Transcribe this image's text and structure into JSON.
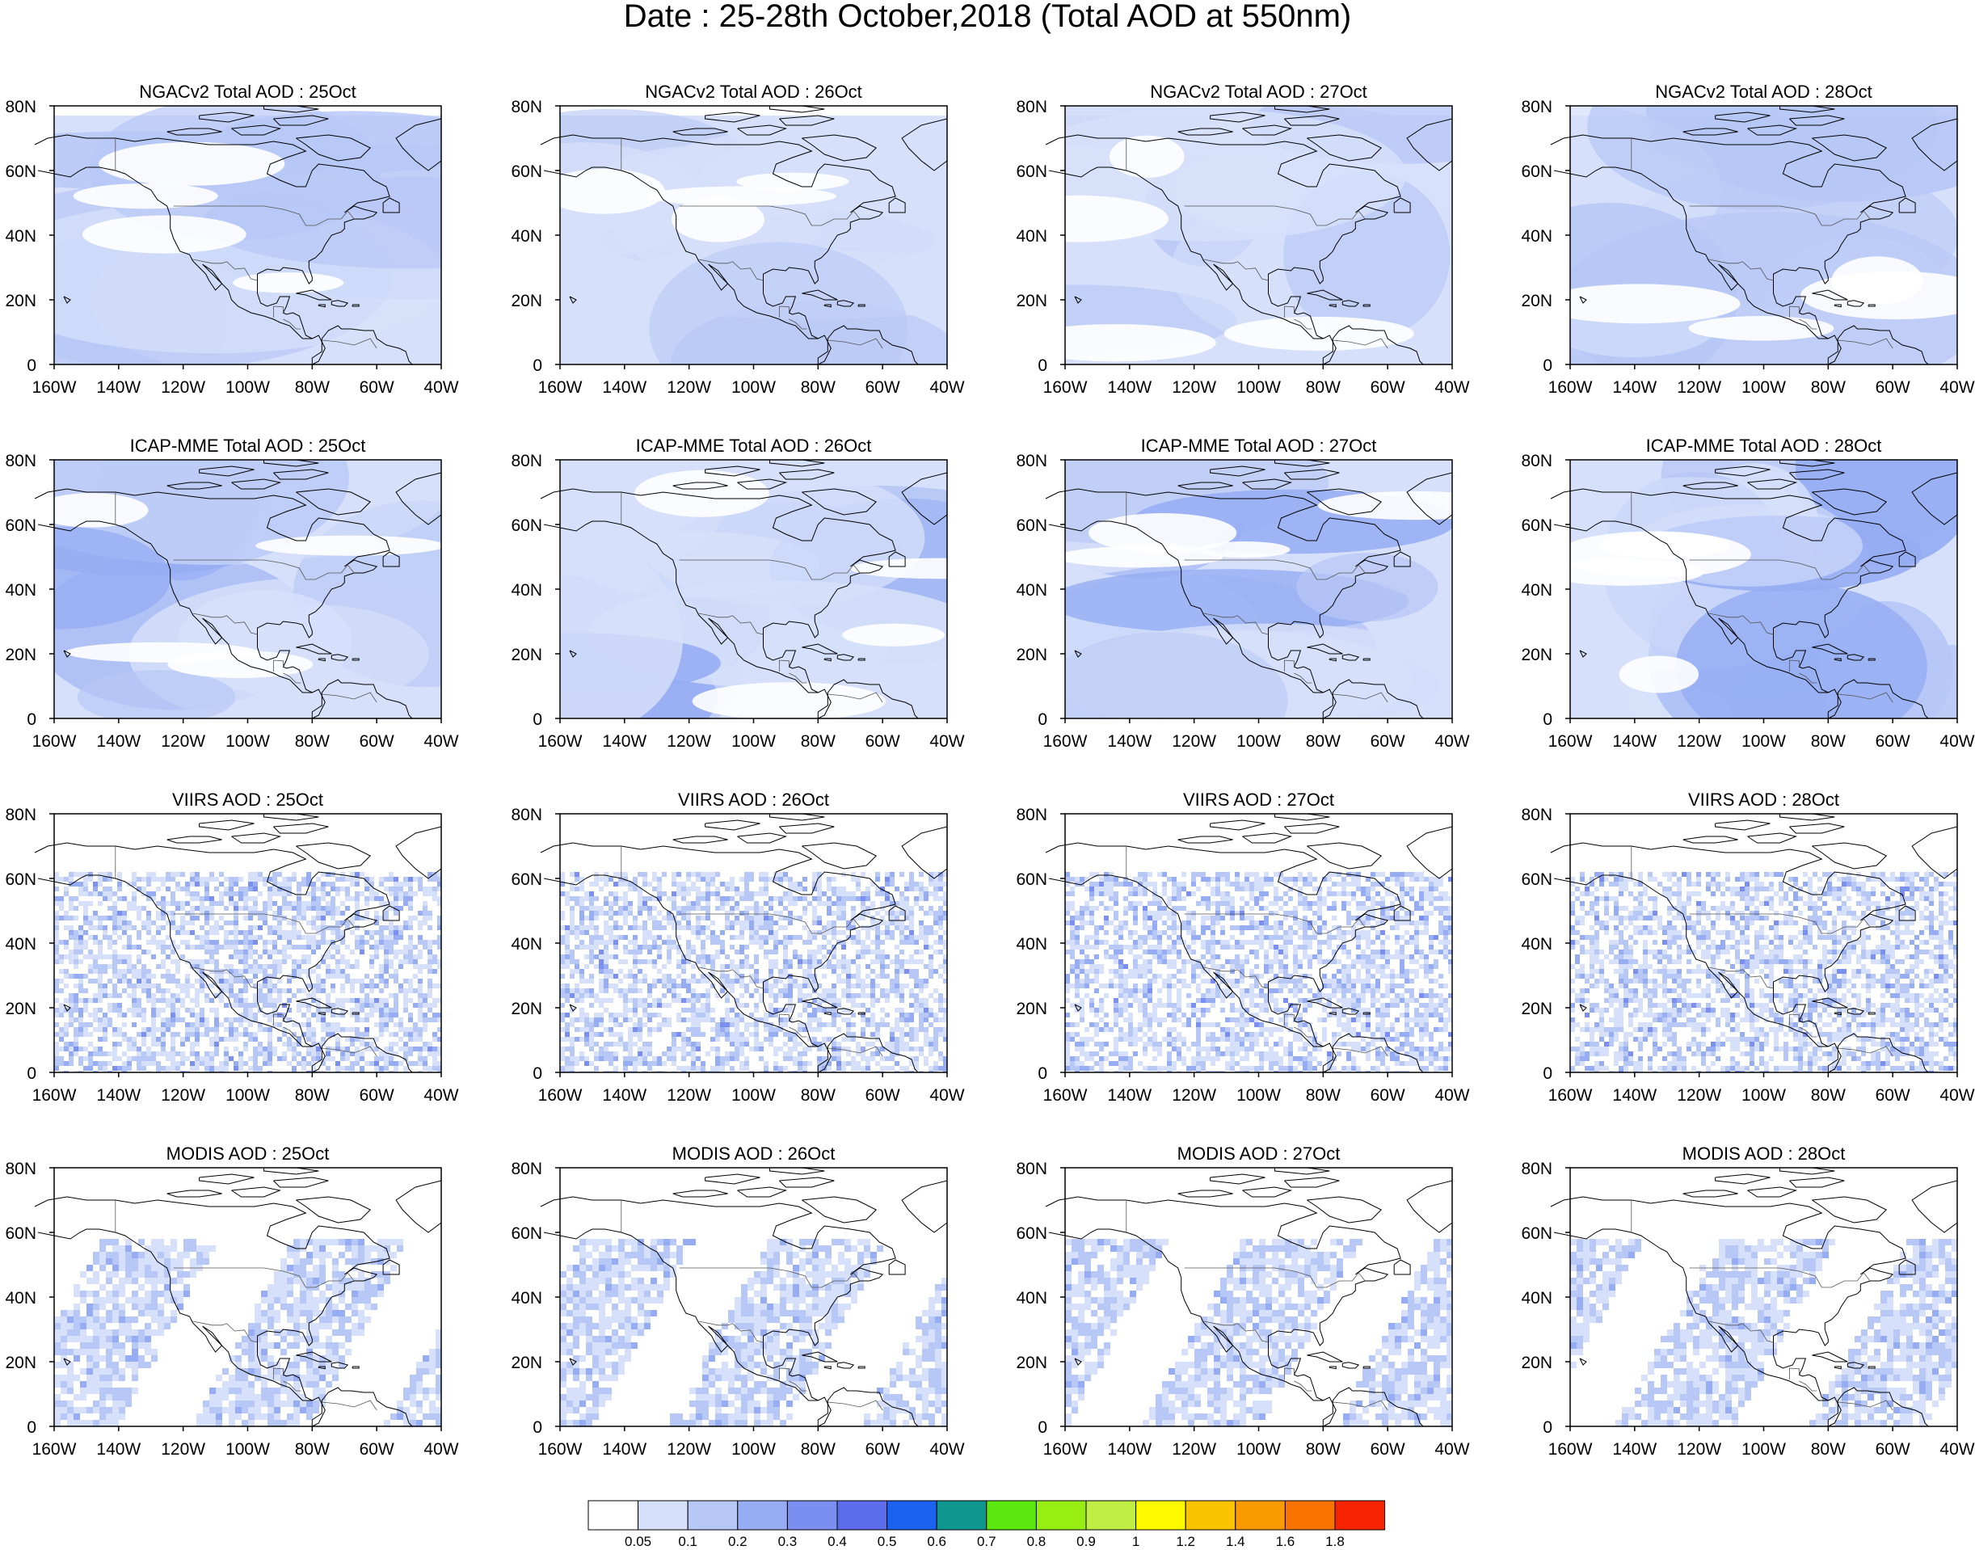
{
  "figure": {
    "title": "Date : 25-28th October,2018 (Total AOD at 550nm)"
  },
  "axes": {
    "lon_ticks": [
      "160W",
      "140W",
      "120W",
      "100W",
      "80W",
      "60W",
      "40W"
    ],
    "lat_ticks": [
      "0",
      "20N",
      "40N",
      "60N",
      "80N"
    ],
    "lon_range": [
      -160,
      -40
    ],
    "lat_range": [
      0,
      80
    ]
  },
  "panels": [
    {
      "id": "ngac-25",
      "title": "NGACv2 Total AOD : 25Oct",
      "style": "model",
      "seed": 11
    },
    {
      "id": "ngac-26",
      "title": "NGACv2 Total AOD : 26Oct",
      "style": "model",
      "seed": 12
    },
    {
      "id": "ngac-27",
      "title": "NGACv2 Total AOD : 27Oct",
      "style": "model",
      "seed": 13
    },
    {
      "id": "ngac-28",
      "title": "NGACv2 Total AOD : 28Oct",
      "style": "model",
      "seed": 14
    },
    {
      "id": "icap-25",
      "title": "ICAP-MME Total AOD : 25Oct",
      "style": "model-dense",
      "seed": 21
    },
    {
      "id": "icap-26",
      "title": "ICAP-MME Total AOD : 26Oct",
      "style": "model-dense",
      "seed": 22
    },
    {
      "id": "icap-27",
      "title": "ICAP-MME Total AOD : 27Oct",
      "style": "model-dense",
      "seed": 23
    },
    {
      "id": "icap-28",
      "title": "ICAP-MME Total AOD : 28Oct",
      "style": "model-dense",
      "seed": 24
    },
    {
      "id": "viirs-25",
      "title": "VIIRS AOD : 25Oct",
      "style": "speckle",
      "seed": 31
    },
    {
      "id": "viirs-26",
      "title": "VIIRS AOD : 26Oct",
      "style": "speckle",
      "seed": 32
    },
    {
      "id": "viirs-27",
      "title": "VIIRS AOD : 27Oct",
      "style": "speckle",
      "seed": 33
    },
    {
      "id": "viirs-28",
      "title": "VIIRS AOD : 28Oct",
      "style": "speckle",
      "seed": 34
    },
    {
      "id": "modis-25",
      "title": "MODIS AOD : 25Oct",
      "style": "swath",
      "seed": 41
    },
    {
      "id": "modis-26",
      "title": "MODIS AOD : 26Oct",
      "style": "swath",
      "seed": 42
    },
    {
      "id": "modis-27",
      "title": "MODIS AOD : 27Oct",
      "style": "swath",
      "seed": 43
    },
    {
      "id": "modis-28",
      "title": "MODIS AOD : 28Oct",
      "style": "swath",
      "seed": 44
    }
  ],
  "colorbar": {
    "labels": [
      "0.05",
      "0.1",
      "0.2",
      "0.3",
      "0.4",
      "0.5",
      "0.6",
      "0.7",
      "0.8",
      "0.9",
      "1",
      "1.2",
      "1.4",
      "1.6",
      "1.8"
    ],
    "colors": [
      "#ffffff",
      "#d6e0fa",
      "#b7c7f6",
      "#96adf3",
      "#7b8ff0",
      "#5d6ceb",
      "#1b62f0",
      "#0f968f",
      "#5ae80f",
      "#96ee12",
      "#c0ee44",
      "#fdfa00",
      "#fbc400",
      "#f99b00",
      "#f87300",
      "#f72400"
    ]
  }
}
